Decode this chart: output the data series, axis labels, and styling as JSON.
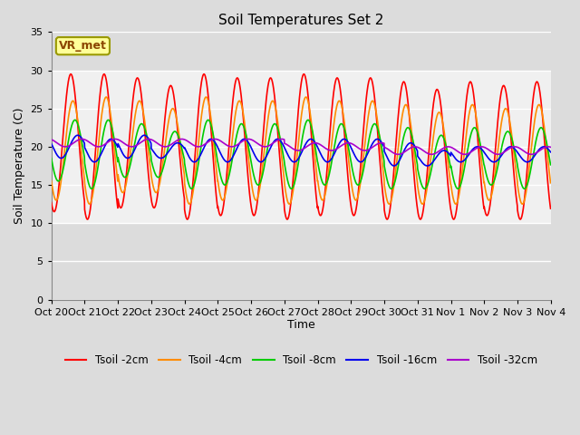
{
  "title": "Soil Temperatures Set 2",
  "xlabel": "Time",
  "ylabel": "Soil Temperature (C)",
  "xlim": [
    0,
    360
  ],
  "ylim": [
    0,
    35
  ],
  "yticks": [
    0,
    5,
    10,
    15,
    20,
    25,
    30,
    35
  ],
  "xtick_labels": [
    "Oct 20",
    "Oct 21",
    "Oct 22",
    "Oct 23",
    "Oct 24",
    "Oct 25",
    "Oct 26",
    "Oct 27",
    "Oct 28",
    "Oct 29",
    "Oct 30",
    "Oct 31",
    "Nov 1",
    "Nov 2",
    "Nov 3",
    "Nov 4"
  ],
  "xtick_positions": [
    0,
    24,
    48,
    72,
    96,
    120,
    144,
    168,
    192,
    216,
    240,
    264,
    288,
    312,
    336,
    360
  ],
  "annotation_text": "VR_met",
  "annotation_fg": "#8B4500",
  "annotation_bg": "#FFFF99",
  "annotation_edge": "#999900",
  "fig_bg": "#DCDCDC",
  "ax_bg": "#F0F0F0",
  "shade_bg": "#DCDCDC",
  "grid_color": "#FFFFFF",
  "series": [
    {
      "label": "Tsoil -2cm",
      "color": "#FF0000",
      "lw": 1.2
    },
    {
      "label": "Tsoil -4cm",
      "color": "#FF8C00",
      "lw": 1.2
    },
    {
      "label": "Tsoil -8cm",
      "color": "#00CC00",
      "lw": 1.2
    },
    {
      "label": "Tsoil -16cm",
      "color": "#0000EE",
      "lw": 1.2
    },
    {
      "label": "Tsoil -32cm",
      "color": "#AA00CC",
      "lw": 1.2
    }
  ],
  "daily_means_2cm": [
    20.5,
    20.0,
    20.5,
    20.0,
    20.0,
    20.0,
    20.0,
    20.0,
    20.0,
    20.0,
    19.5,
    19.0,
    19.5,
    19.5,
    19.5,
    19.5
  ],
  "daily_amps_2cm": [
    9.0,
    9.5,
    8.5,
    8.0,
    9.5,
    9.0,
    9.0,
    9.5,
    9.0,
    9.0,
    9.0,
    8.5,
    9.0,
    8.5,
    9.0,
    9.0
  ],
  "daily_means_4cm": [
    19.5,
    19.5,
    20.0,
    19.5,
    19.5,
    19.5,
    19.5,
    19.5,
    19.5,
    19.5,
    19.0,
    18.5,
    19.0,
    19.0,
    19.0,
    19.0
  ],
  "daily_amps_4cm": [
    6.5,
    7.0,
    6.0,
    5.5,
    7.0,
    6.5,
    6.5,
    7.0,
    6.5,
    6.5,
    6.5,
    6.0,
    6.5,
    6.0,
    6.5,
    6.5
  ],
  "daily_means_8cm": [
    19.5,
    19.0,
    19.5,
    19.0,
    19.0,
    19.0,
    19.0,
    19.0,
    19.0,
    19.0,
    18.5,
    18.0,
    18.5,
    18.5,
    18.5,
    18.5
  ],
  "daily_amps_8cm": [
    4.0,
    4.5,
    3.5,
    3.0,
    4.5,
    4.0,
    4.0,
    4.5,
    4.0,
    4.0,
    4.0,
    3.5,
    4.0,
    3.5,
    4.0,
    4.0
  ],
  "daily_means_16cm": [
    20.0,
    19.5,
    20.0,
    19.5,
    19.5,
    19.5,
    19.5,
    19.5,
    19.5,
    19.5,
    19.0,
    18.5,
    19.0,
    19.0,
    19.0,
    19.0
  ],
  "daily_amps_16cm": [
    1.5,
    1.5,
    1.5,
    1.0,
    1.5,
    1.5,
    1.5,
    1.5,
    1.5,
    1.5,
    1.5,
    1.0,
    1.0,
    1.0,
    1.0,
    1.0
  ],
  "daily_means_32cm": [
    20.5,
    20.5,
    20.5,
    20.5,
    20.5,
    20.5,
    20.5,
    20.0,
    20.0,
    20.0,
    19.5,
    19.5,
    19.5,
    19.5,
    19.5,
    19.5
  ],
  "daily_amps_32cm": [
    0.5,
    0.5,
    0.5,
    0.5,
    0.5,
    0.5,
    0.5,
    0.5,
    0.5,
    0.5,
    0.5,
    0.5,
    0.5,
    0.5,
    0.5,
    0.5
  ],
  "phase_peak_2cm": 14.0,
  "phase_peak_4cm": 15.5,
  "phase_peak_8cm": 17.0,
  "phase_peak_16cm": 19.0,
  "phase_peak_32cm": 22.0,
  "pts_per_hour": 6
}
